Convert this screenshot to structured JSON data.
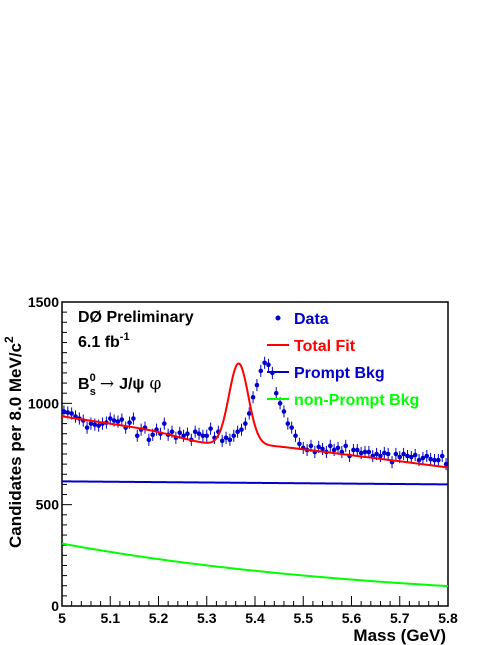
{
  "chart_data": {
    "type": "scatter",
    "x_range": [
      5.0,
      5.8
    ],
    "y_range": [
      0,
      1500
    ],
    "x_ticks_major": [
      5.0,
      5.1,
      5.2,
      5.3,
      5.4,
      5.5,
      5.6,
      5.7,
      5.8
    ],
    "x_tick_labels": [
      "5",
      "5.1",
      "5.2",
      "5.3",
      "5.4",
      "5.5",
      "5.6",
      "5.7",
      "5.8"
    ],
    "y_ticks_major": [
      0,
      500,
      1000,
      1500
    ],
    "y_tick_labels": [
      "0",
      "500",
      "1000",
      "1500"
    ],
    "xlabel": "Mass  (GeV)",
    "ylabel_main": "Candidates per 8.0 MeV/c",
    "ylabel_sup": "2",
    "annotations": {
      "experiment": "DØ Preliminary",
      "lumi_main": "6.1 fb",
      "lumi_sup": "-1",
      "decay_B": "B",
      "decay_sup": "0",
      "decay_sub": "s",
      "decay_arrow": "→",
      "decay_jpsi": "J/ψ",
      "decay_phi": "φ"
    },
    "legend": [
      {
        "key": "data",
        "label": "Data",
        "color": "#0000cc",
        "marker": "point"
      },
      {
        "key": "total",
        "label": "Total Fit",
        "color": "#ff0000",
        "marker": "line"
      },
      {
        "key": "prompt",
        "label": "Prompt Bkg",
        "color": "#0000cc",
        "marker": "line"
      },
      {
        "key": "nonprompt",
        "label": "non-Prompt Bkg",
        "color": "#00ff00",
        "marker": "line"
      }
    ],
    "legend_position": "top-right",
    "series": [
      {
        "name": "Data",
        "color": "#0000cc",
        "bin_width": 0.008,
        "x_start": 5.004,
        "values": [
          960,
          955,
          950,
          935,
          925,
          915,
          880,
          900,
          895,
          890,
          900,
          905,
          925,
          915,
          910,
          920,
          880,
          905,
          925,
          840,
          870,
          880,
          820,
          845,
          870,
          850,
          900,
          845,
          860,
          830,
          855,
          840,
          850,
          820,
          860,
          850,
          840,
          840,
          875,
          830,
          860,
          815,
          830,
          820,
          840,
          860,
          870,
          900,
          950,
          1030,
          1090,
          1160,
          1200,
          1190,
          1150,
          1050,
          1000,
          960,
          900,
          880,
          840,
          800,
          780,
          770,
          790,
          760,
          785,
          775,
          760,
          790,
          770,
          780,
          760,
          790,
          740,
          770,
          770,
          755,
          760,
          760,
          740,
          750,
          740,
          755,
          750,
          710,
          750,
          735,
          750,
          740,
          735,
          745,
          720,
          730,
          740,
          725,
          720,
          720,
          740,
          700,
          710,
          720,
          700,
          740,
          700,
          720,
          690,
          720,
          680,
          710,
          700,
          700,
          690,
          700,
          680,
          700
        ],
        "error": 30
      }
    ],
    "curves": {
      "total": {
        "color": "#ff0000",
        "signal_amp": 400,
        "signal_mean": 5.366,
        "signal_sigma": 0.02
      },
      "prompt": {
        "color": "#0000cc",
        "y_at_5_0": 615,
        "y_at_5_8": 600
      },
      "nonprompt": {
        "color": "#00ff00",
        "y_at_5_0": 308,
        "y_at_5_8": 98
      }
    }
  }
}
